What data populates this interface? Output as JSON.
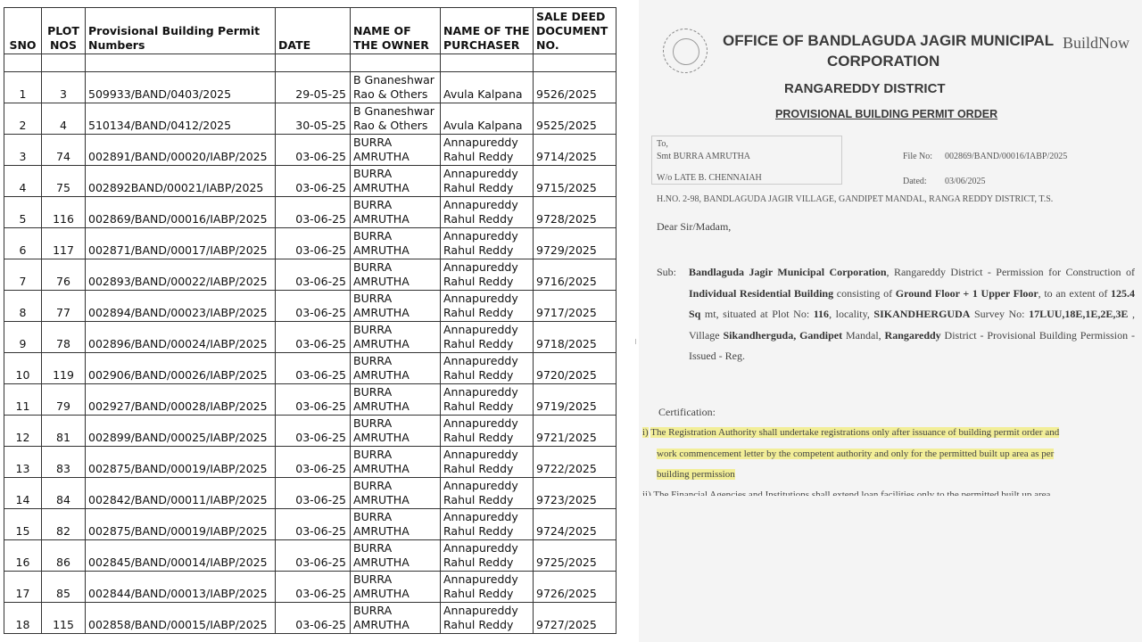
{
  "table": {
    "headers": [
      "SNO",
      "PLOT NOS",
      "Provisional Building Permit Numbers",
      "DATE",
      "NAME OF THE OWNER",
      "NAME OF THE PURCHASER",
      "SALE DEED DOCUMENT NO."
    ],
    "rows": [
      [
        "1",
        "3",
        "509933/BAND/0403/2025",
        "29-05-25",
        "B Gnaneshwar Rao & Others",
        "Avula Kalpana",
        "9526/2025"
      ],
      [
        "2",
        "4",
        "510134/BAND/0412/2025",
        "30-05-25",
        "B Gnaneshwar Rao & Others",
        "Avula Kalpana",
        "9525/2025"
      ],
      [
        "3",
        "74",
        "002891/BAND/00020/IABP/2025",
        "03-06-25",
        "BURRA AMRUTHA",
        "Annapureddy Rahul Reddy",
        "9714/2025"
      ],
      [
        "4",
        "75",
        "002892BAND/00021/IABP/2025",
        "03-06-25",
        "BURRA AMRUTHA",
        "Annapureddy Rahul Reddy",
        "9715/2025"
      ],
      [
        "5",
        "116",
        "002869/BAND/00016/IABP/2025",
        "03-06-25",
        "BURRA AMRUTHA",
        "Annapureddy Rahul Reddy",
        "9728/2025"
      ],
      [
        "6",
        "117",
        "002871/BAND/00017/IABP/2025",
        "03-06-25",
        "BURRA AMRUTHA",
        "Annapureddy Rahul Reddy",
        "9729/2025"
      ],
      [
        "7",
        "76",
        "002893/BAND/00022/IABP/2025",
        "03-06-25",
        "BURRA AMRUTHA",
        "Annapureddy Rahul Reddy",
        "9716/2025"
      ],
      [
        "8",
        "77",
        "002894/BAND/00023/IABP/2025",
        "03-06-25",
        "BURRA AMRUTHA",
        "Annapureddy Rahul Reddy",
        "9717/2025"
      ],
      [
        "9",
        "78",
        "002896/BAND/00024/IABP/2025",
        "03-06-25",
        "BURRA AMRUTHA",
        "Annapureddy Rahul Reddy",
        "9718/2025"
      ],
      [
        "10",
        "119",
        "002906/BAND/00026/IABP/2025",
        "03-06-25",
        "BURRA AMRUTHA",
        "Annapureddy Rahul Reddy",
        "9720/2025"
      ],
      [
        "11",
        "79",
        "002927/BAND/00028/IABP/2025",
        "03-06-25",
        "BURRA AMRUTHA",
        "Annapureddy Rahul Reddy",
        "9719/2025"
      ],
      [
        "12",
        "81",
        "002899/BAND/00025/IABP/2025",
        "03-06-25",
        "BURRA AMRUTHA",
        "Annapureddy Rahul Reddy",
        "9721/2025"
      ],
      [
        "13",
        "83",
        "002875/BAND/00019/IABP/2025",
        "03-06-25",
        "BURRA AMRUTHA",
        "Annapureddy Rahul Reddy",
        "9722/2025"
      ],
      [
        "14",
        "84",
        "002842/BAND/00011/IABP/2025",
        "03-06-25",
        "BURRA AMRUTHA",
        "Annapureddy Rahul Reddy",
        "9723/2025"
      ],
      [
        "15",
        "82",
        "002875/BAND/00019/IABP/2025",
        "03-06-25",
        "BURRA AMRUTHA",
        "Annapureddy Rahul Reddy",
        "9724/2025"
      ],
      [
        "16",
        "86",
        "002845/BAND/00014/IABP/2025",
        "03-06-25",
        "BURRA AMRUTHA",
        "Annapureddy Rahul Reddy",
        "9725/2025"
      ],
      [
        "17",
        "85",
        "002844/BAND/00013/IABP/2025",
        "03-06-25",
        "BURRA AMRUTHA",
        "Annapureddy Rahul Reddy",
        "9726/2025"
      ],
      [
        "18",
        "115",
        "002858/BAND/00015/IABP/2025",
        "03-06-25",
        "BURRA AMRUTHA",
        "Annapureddy Rahul Reddy",
        "9727/2025"
      ]
    ]
  },
  "order": {
    "office_line1": "OFFICE OF BANDLAGUDA JAGIR MUNICIPAL",
    "office_line2": "CORPORATION",
    "brand": "BuildNow",
    "district": "RANGAREDDY DISTRICT",
    "title": "PROVISIONAL BUILDING PERMIT ORDER",
    "to": "To,",
    "addressee": "Smt BURRA AMRUTHA",
    "relation": "W/o LATE B. CHENNAIAH",
    "address": "H.NO. 2-98, BANDLAGUDA JAGIR VILLAGE, GANDIPET MANDAL, RANGA REDDY DISTRICT, T.S.",
    "file_no_label": "File No:",
    "file_no": "002869/BAND/00016/IABP/2025",
    "dated_label": "Dated:",
    "dated": "03/06/2025",
    "salutation": "Dear Sir/Madam,",
    "sub_label": "Sub:",
    "sub_1": "Bandlaguda Jagir Municipal Corporation",
    "sub_2": ", Rangareddy District - Permission for Construction of",
    "sub_3": "Individual Residential Building",
    "sub_4": " consisting of ",
    "sub_5": "Ground Floor + 1 Upper Floor",
    "sub_6": ", to an extent of ",
    "sub_7": "125.4 Sq",
    "sub_8": "mt",
    "sub_9": ", situated at Plot No: ",
    "sub_10": "116",
    "sub_11": ", locality, ",
    "sub_12": "SIKANDHERGUDA",
    "sub_13": " Survey No: ",
    "sub_14": "17LUU,18E,1E,2E,3E",
    "sub_15": " , Village",
    "sub_16": "Sikandherguda, Gandipet",
    "sub_17": " Mandal, ",
    "sub_18": "Rangareddy",
    "sub_19": " District - Provisional Building Permission - Issued -",
    "sub_20": "Reg.",
    "cert_label": "Certification:",
    "cert_i_num": "i)",
    "cert_i_a": "The Registration Authority shall undertake registrations only after issuance of building permit order and",
    "cert_i_b": "work commencement letter by the competent authority and only for the permitted built up area as per",
    "cert_i_c": "building permission",
    "cert_ii": "ii) The Financial Agencies and Institutions shall extend loan facilities only to the permitted built up area",
    "highlight_color": "#f2ee98"
  }
}
